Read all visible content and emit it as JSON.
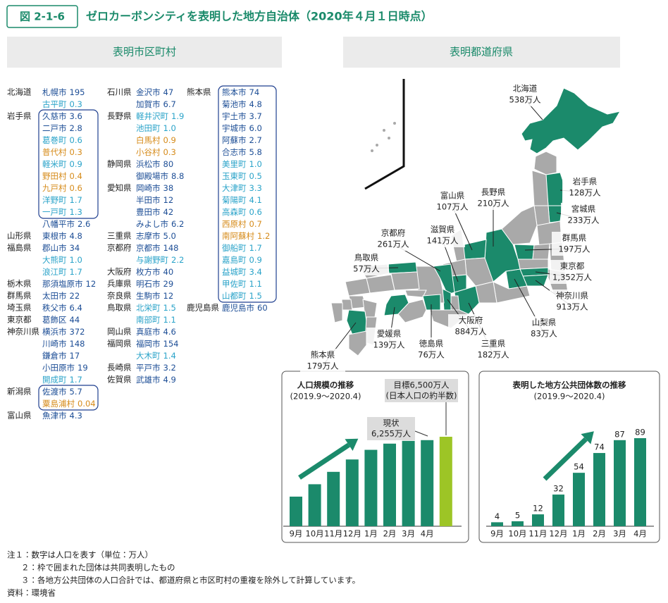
{
  "header": {
    "figure_number": "図 2-1-6",
    "title": "ゼロカーボンシティを表明した地方自治体（2020年４月１日時点）"
  },
  "municipalities": {
    "heading": "表明市区町村",
    "columns": [
      [
        {
          "prefecture": "北海道",
          "items": [
            {
              "name": "札幌市",
              "population": "195"
            },
            {
              "name": "古平町",
              "population": "0.3"
            }
          ]
        },
        {
          "prefecture": "岩手県",
          "joint": [
            {
              "name": "久慈市",
              "population": "3.6"
            },
            {
              "name": "二戸市",
              "population": "2.8"
            },
            {
              "name": "葛巻町",
              "population": "0.6"
            },
            {
              "name": "普代村",
              "population": "0.3"
            },
            {
              "name": "軽米町",
              "population": "0.9"
            },
            {
              "name": "野田村",
              "population": "0.4"
            },
            {
              "name": "九戸村",
              "population": "0.6"
            },
            {
              "name": "洋野町",
              "population": "1.7"
            },
            {
              "name": "一戸町",
              "population": "1.3"
            }
          ],
          "items": [
            {
              "name": "八幡平市",
              "population": "2.6"
            }
          ]
        },
        {
          "prefecture": "山形県",
          "items": [
            {
              "name": "東根市",
              "population": "4.8"
            }
          ]
        },
        {
          "prefecture": "福島県",
          "items": [
            {
              "name": "郡山市",
              "population": "34"
            },
            {
              "name": "大熊町",
              "population": "1.0"
            },
            {
              "name": "浪江町",
              "population": "1.7"
            }
          ]
        },
        {
          "prefecture": "栃木県",
          "items": [
            {
              "name": "那須塩原市",
              "population": "12"
            }
          ]
        },
        {
          "prefecture": "群馬県",
          "items": [
            {
              "name": "太田市",
              "population": "22"
            }
          ]
        },
        {
          "prefecture": "埼玉県",
          "items": [
            {
              "name": "秩父市",
              "population": "6.4"
            }
          ]
        },
        {
          "prefecture": "東京都",
          "items": [
            {
              "name": "葛飾区",
              "population": "44"
            }
          ]
        },
        {
          "prefecture": "神奈川県",
          "items": [
            {
              "name": "横浜市",
              "population": "372"
            },
            {
              "name": "川崎市",
              "population": "148"
            },
            {
              "name": "鎌倉市",
              "population": "17"
            },
            {
              "name": "小田原市",
              "population": "19"
            },
            {
              "name": "開成町",
              "population": "1.7"
            }
          ]
        },
        {
          "prefecture": "新潟県",
          "joint": [
            {
              "name": "佐渡市",
              "population": "5.7"
            },
            {
              "name": "粟島浦村",
              "population": "0.04"
            }
          ]
        },
        {
          "prefecture": "富山県",
          "items": [
            {
              "name": "魚津市",
              "population": "4.3"
            }
          ]
        }
      ],
      [
        {
          "prefecture": "石川県",
          "items": [
            {
              "name": "金沢市",
              "population": "47"
            },
            {
              "name": "加賀市",
              "population": "6.7"
            }
          ]
        },
        {
          "prefecture": "長野県",
          "items": [
            {
              "name": "軽井沢町",
              "population": "1.9"
            },
            {
              "name": "池田町",
              "population": "1.0"
            },
            {
              "name": "白馬村",
              "population": "0.9"
            },
            {
              "name": "小谷村",
              "population": "0.3"
            }
          ]
        },
        {
          "prefecture": "静岡県",
          "items": [
            {
              "name": "浜松市",
              "population": "80"
            },
            {
              "name": "御殿場市",
              "population": "8.8"
            }
          ]
        },
        {
          "prefecture": "愛知県",
          "items": [
            {
              "name": "岡崎市",
              "population": "38"
            },
            {
              "name": "半田市",
              "population": "12"
            },
            {
              "name": "豊田市",
              "population": "42"
            },
            {
              "name": "みよし市",
              "population": "6.2"
            }
          ]
        },
        {
          "prefecture": "三重県",
          "items": [
            {
              "name": "志摩市",
              "population": "5.0"
            }
          ]
        },
        {
          "prefecture": "京都府",
          "items": [
            {
              "name": "京都市",
              "population": "148"
            },
            {
              "name": "与謝野町",
              "population": "2.2"
            }
          ]
        },
        {
          "prefecture": "大阪府",
          "items": [
            {
              "name": "枚方市",
              "population": "40"
            }
          ]
        },
        {
          "prefecture": "兵庫県",
          "items": [
            {
              "name": "明石市",
              "population": "29"
            }
          ]
        },
        {
          "prefecture": "奈良県",
          "items": [
            {
              "name": "生駒市",
              "population": "12"
            }
          ]
        },
        {
          "prefecture": "鳥取県",
          "items": [
            {
              "name": "北栄町",
              "population": "1.5"
            },
            {
              "name": "南部町",
              "population": "1.1"
            }
          ]
        },
        {
          "prefecture": "岡山県",
          "items": [
            {
              "name": "真庭市",
              "population": "4.6"
            }
          ]
        },
        {
          "prefecture": "福岡県",
          "items": [
            {
              "name": "福岡市",
              "population": "154"
            },
            {
              "name": "大木町",
              "population": "1.4"
            }
          ]
        },
        {
          "prefecture": "長崎県",
          "items": [
            {
              "name": "平戸市",
              "population": "3.2"
            }
          ]
        },
        {
          "prefecture": "佐賀県",
          "items": [
            {
              "name": "武雄市",
              "population": "4.9"
            }
          ]
        }
      ],
      [
        {
          "prefecture": "熊本県",
          "joint": [
            {
              "name": "熊本市",
              "population": "74"
            },
            {
              "name": "菊池市",
              "population": "4.8"
            },
            {
              "name": "宇土市",
              "population": "3.7"
            },
            {
              "name": "宇城市",
              "population": "6.0"
            },
            {
              "name": "阿蘇市",
              "population": "2.7"
            },
            {
              "name": "合志市",
              "population": "5.8"
            },
            {
              "name": "美里町",
              "population": "1.0"
            },
            {
              "name": "玉東町",
              "population": "0.5"
            },
            {
              "name": "大津町",
              "population": "3.3"
            },
            {
              "name": "菊陽町",
              "population": "4.1"
            },
            {
              "name": "高森町",
              "population": "0.6"
            },
            {
              "name": "西原村",
              "population": "0.7"
            },
            {
              "name": "南阿蘇村",
              "population": "1.2"
            },
            {
              "name": "御船町",
              "population": "1.7"
            },
            {
              "name": "嘉島町",
              "population": "0.9"
            },
            {
              "name": "益城町",
              "population": "3.4"
            },
            {
              "name": "甲佐町",
              "population": "1.1"
            },
            {
              "name": "山都町",
              "population": "1.5"
            }
          ]
        },
        {
          "prefecture": "鹿児島県",
          "items": [
            {
              "name": "鹿児島市",
              "population": "60"
            }
          ]
        }
      ]
    ]
  },
  "prefectures": {
    "heading": "表明都道府県",
    "labels": [
      {
        "name": "北海道",
        "population": "538万人"
      },
      {
        "name": "岩手県",
        "population": "128万人"
      },
      {
        "name": "宮城県",
        "population": "233万人"
      },
      {
        "name": "群馬県",
        "population": "197万人"
      },
      {
        "name": "東京都",
        "population": "1,352万人"
      },
      {
        "name": "神奈川県",
        "population": "913万人"
      },
      {
        "name": "山梨県",
        "population": "83万人"
      },
      {
        "name": "三重県",
        "population": "182万人"
      },
      {
        "name": "徳島県",
        "population": "76万人"
      },
      {
        "name": "大阪府",
        "population": "884万人"
      },
      {
        "name": "愛媛県",
        "population": "139万人"
      },
      {
        "name": "熊本県",
        "population": "179万人"
      },
      {
        "name": "鳥取県",
        "population": "57万人"
      },
      {
        "name": "京都府",
        "population": "261万人"
      },
      {
        "name": "滋賀県",
        "population": "141万人"
      },
      {
        "name": "富山県",
        "population": "107万人"
      },
      {
        "name": "長野県",
        "population": "210万人"
      }
    ]
  },
  "chart_data": [
    {
      "type": "bar",
      "title": "人口規模の推移",
      "subtitle": "(2019.9～2020.4)",
      "categories": [
        "9月",
        "10月",
        "11月",
        "12月",
        "1月",
        "2月",
        "3月",
        "4月",
        null
      ],
      "values": [
        2150,
        3050,
        3950,
        4850,
        5550,
        6000,
        6200,
        6255,
        6500
      ],
      "colors": [
        "#1b8a6b",
        "#1b8a6b",
        "#1b8a6b",
        "#1b8a6b",
        "#1b8a6b",
        "#1b8a6b",
        "#1b8a6b",
        "#1b8a6b",
        "#9dc526"
      ],
      "annotations": [
        {
          "text": [
            "現状",
            "6,255万人"
          ]
        },
        {
          "text": [
            "目標6,500万人",
            "(日本人口の約半数)"
          ]
        }
      ]
    },
    {
      "type": "bar",
      "title": "表明した地方公共団体数の推移",
      "subtitle": "(2019.9～2020.4)",
      "categories": [
        "9月",
        "10月",
        "11月",
        "12月",
        "1月",
        "2月",
        "3月",
        "4月"
      ],
      "values": [
        4,
        5,
        12,
        32,
        54,
        74,
        87,
        89
      ],
      "color": "#1b8a6b"
    }
  ],
  "notes": [
    "注１：数字は人口を表す（単位：万人）",
    "２：枠で囲まれた団体は共同表明したもの",
    "３：各地方公共団体の人口合計では、都道府県と市区町村の重複を除外して計算しています。"
  ],
  "source": "資料：環境省"
}
